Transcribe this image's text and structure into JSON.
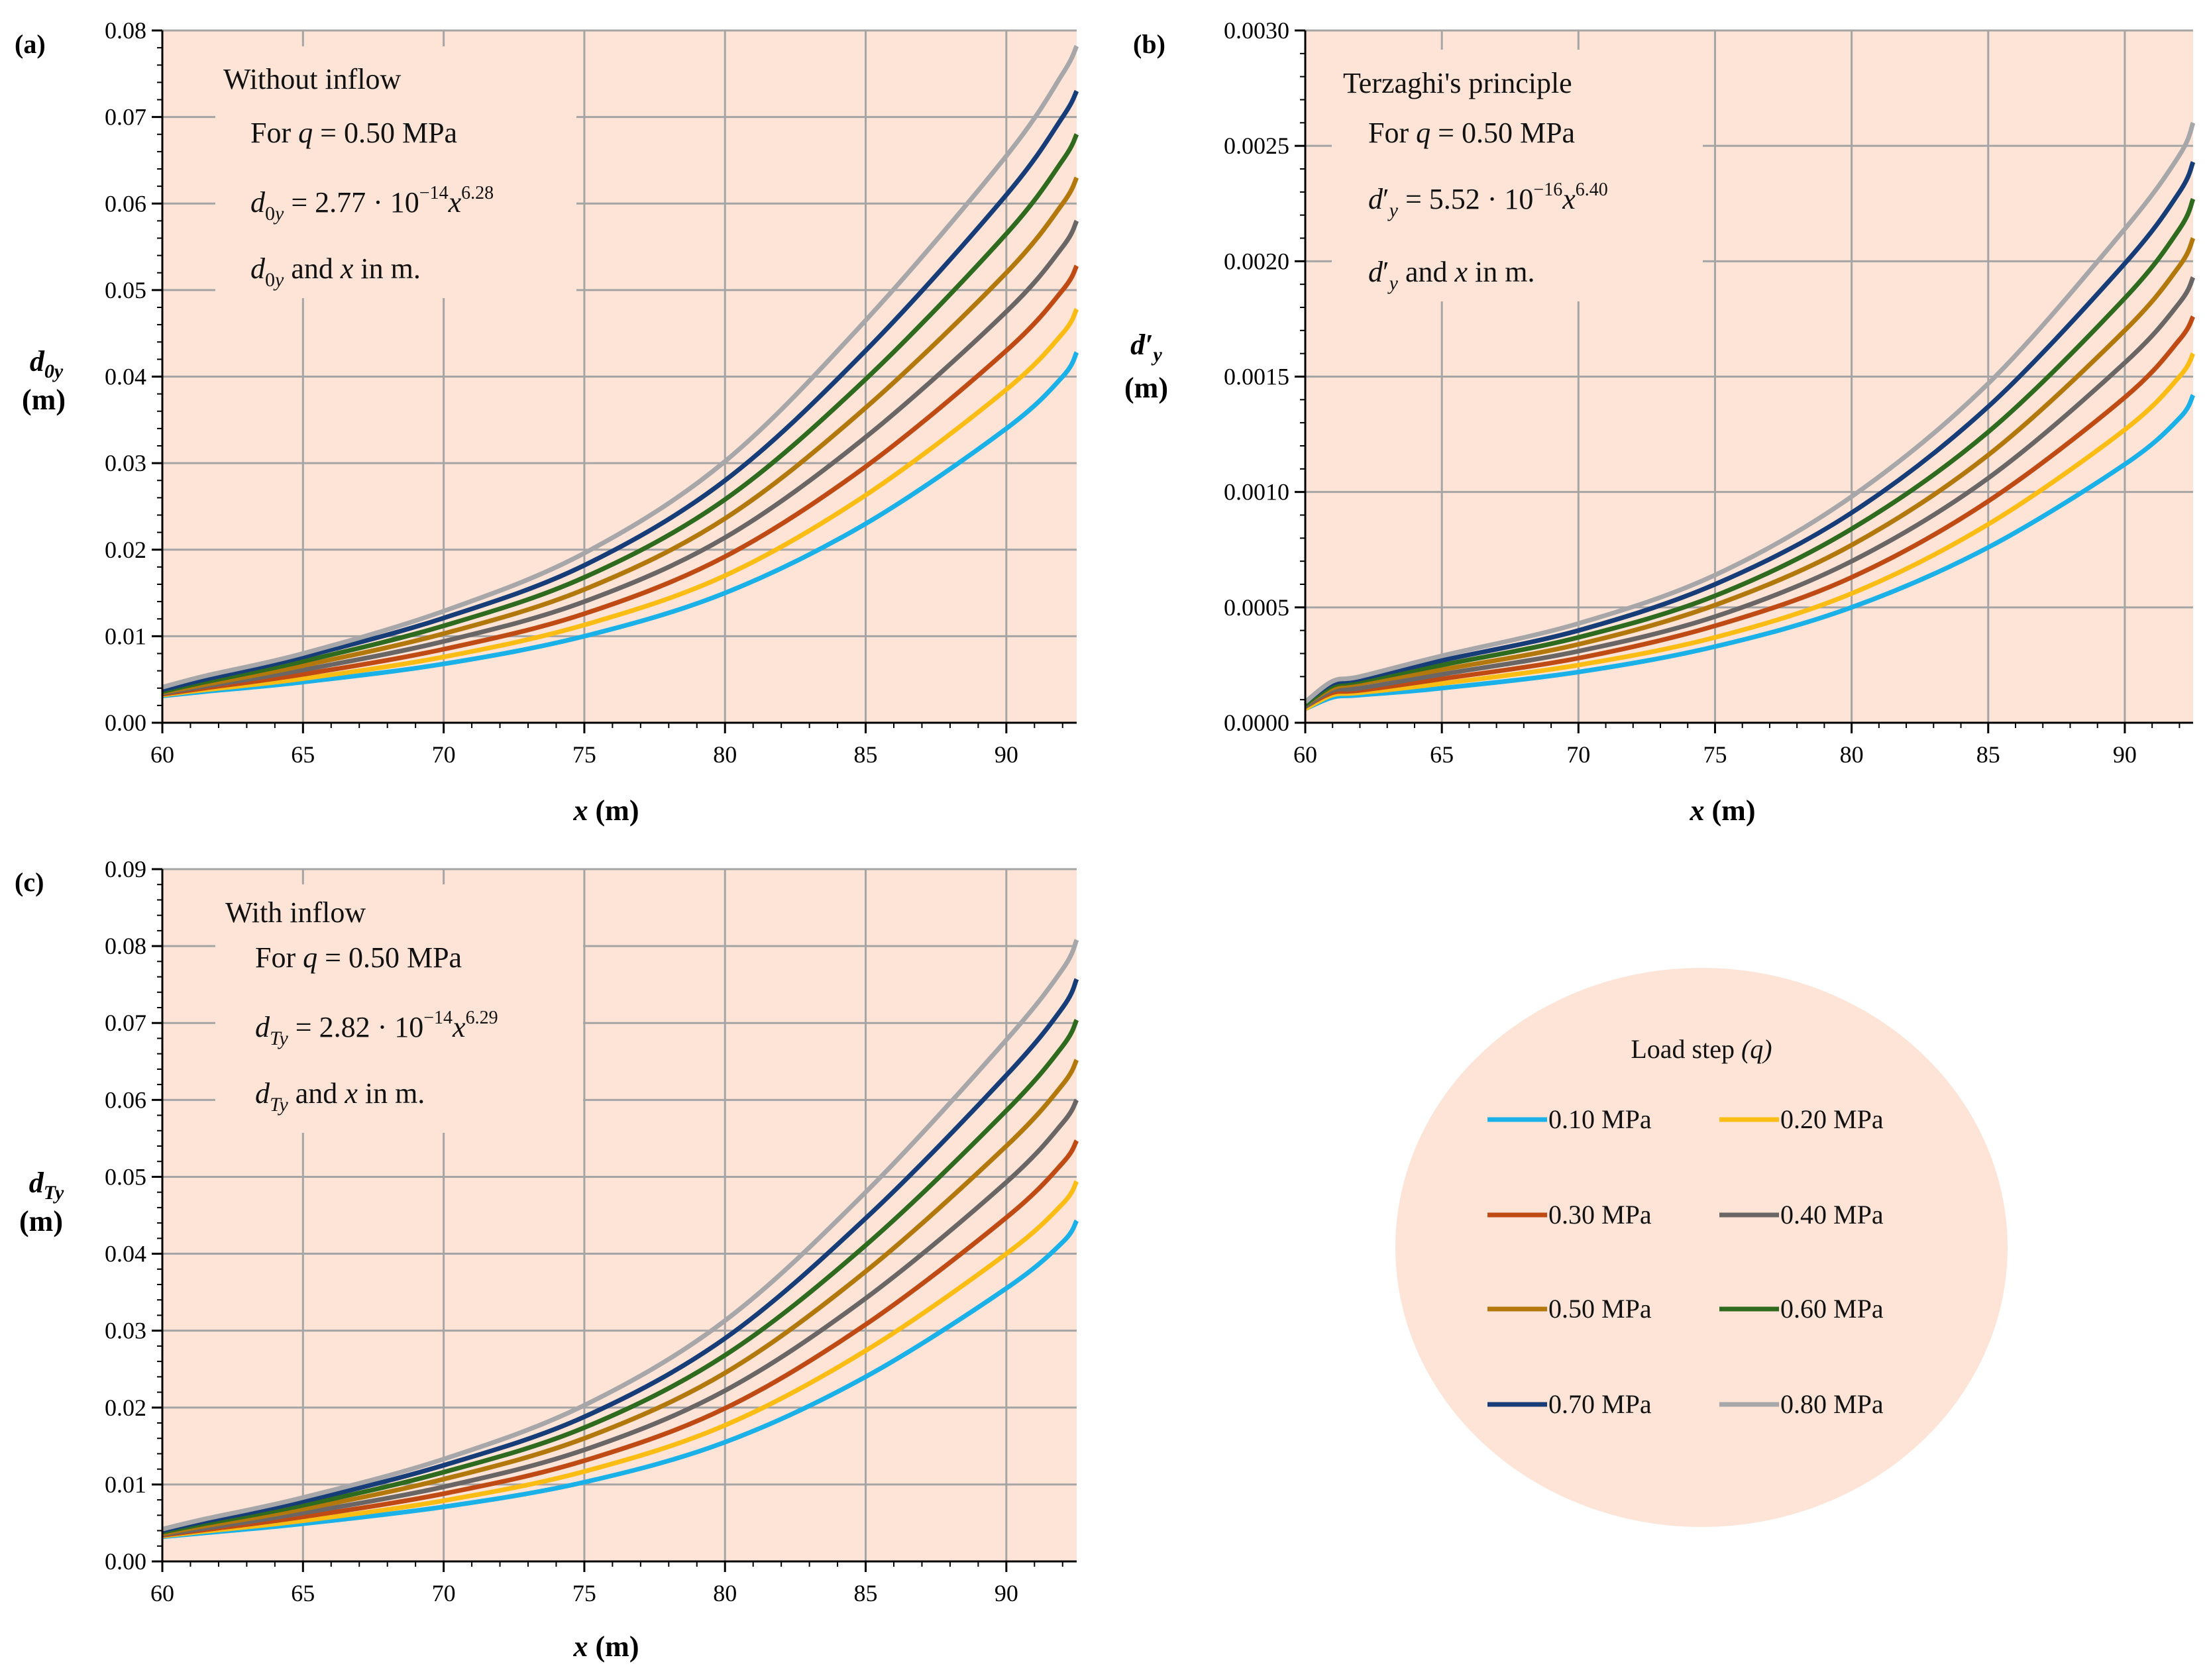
{
  "chart_data": [
    {
      "panel": "(a)",
      "type": "line",
      "xlabel": "x (m)",
      "xlabel_var": "x",
      "xlabel_unit": "(m)",
      "ylabel_var": "d",
      "ylabel_sub": "0y",
      "ylabel_unit": "(m)",
      "xlim": [
        60,
        92.5
      ],
      "ylim": [
        0,
        0.08
      ],
      "xticks": [
        60,
        65,
        70,
        75,
        80,
        85,
        90
      ],
      "yticks": [
        "0.00",
        "0.01",
        "0.02",
        "0.03",
        "0.04",
        "0.05",
        "0.06",
        "0.07",
        "0.08"
      ],
      "yticks_values": [
        0,
        0.01,
        0.02,
        0.03,
        0.04,
        0.05,
        0.06,
        0.07,
        0.08
      ],
      "grid": true,
      "annotation": {
        "title": "Without inflow",
        "line1": "For q = 0.50 MPa",
        "line2": "d0y = 2.77 · 10^-14 x^6.28",
        "line3": "d0y and x in m."
      },
      "x": [
        60,
        61.5,
        65,
        70,
        75,
        80,
        85,
        90,
        92,
        92.5
      ],
      "series": [
        {
          "name": "0.10 MPa",
          "values": [
            0.0031,
            0.0036,
            0.0047,
            0.0068,
            0.01,
            0.015,
            0.023,
            0.034,
            0.04,
            0.0428
          ]
        },
        {
          "name": "0.20 MPa",
          "values": [
            0.0032,
            0.0038,
            0.0051,
            0.0076,
            0.0113,
            0.017,
            0.0263,
            0.0385,
            0.045,
            0.0478
          ]
        },
        {
          "name": "0.30 MPa",
          "values": [
            0.0033,
            0.004,
            0.0056,
            0.0085,
            0.0126,
            0.0192,
            0.0296,
            0.043,
            0.05,
            0.0528
          ]
        },
        {
          "name": "0.40 MPa",
          "values": [
            0.0034,
            0.0042,
            0.0061,
            0.0094,
            0.014,
            0.0214,
            0.033,
            0.0475,
            0.055,
            0.058
          ]
        },
        {
          "name": "0.50 MPa",
          "values": [
            0.0035,
            0.0044,
            0.0066,
            0.0103,
            0.0154,
            0.0236,
            0.0364,
            0.052,
            0.06,
            0.063
          ]
        },
        {
          "name": "0.60 MPa",
          "values": [
            0.0036,
            0.0047,
            0.0071,
            0.0112,
            0.0168,
            0.0258,
            0.0397,
            0.0565,
            0.065,
            0.068
          ]
        },
        {
          "name": "0.70 MPa",
          "values": [
            0.0038,
            0.005,
            0.0076,
            0.0121,
            0.0182,
            0.028,
            0.043,
            0.061,
            0.07,
            0.073
          ]
        },
        {
          "name": "0.80 MPa",
          "values": [
            0.0041,
            0.0054,
            0.008,
            0.0129,
            0.0196,
            0.0302,
            0.0465,
            0.0655,
            0.075,
            0.0782
          ]
        }
      ]
    },
    {
      "panel": "(b)",
      "type": "line",
      "xlabel": "x (m)",
      "xlabel_var": "x",
      "xlabel_unit": "(m)",
      "ylabel_var": "d′",
      "ylabel_sub": "y",
      "ylabel_unit": "(m)",
      "xlim": [
        60,
        92.5
      ],
      "ylim": [
        0,
        0.003
      ],
      "xticks": [
        60,
        65,
        70,
        75,
        80,
        85,
        90
      ],
      "yticks": [
        "0.0000",
        "0.0005",
        "0.0010",
        "0.0015",
        "0.0020",
        "0.0025",
        "0.0030"
      ],
      "yticks_values": [
        0,
        0.0005,
        0.001,
        0.0015,
        0.002,
        0.0025,
        0.003
      ],
      "grid": true,
      "annotation": {
        "title": "Terzaghi's principle",
        "line1": "For q = 0.50 MPa",
        "line2": "d′y = 5.52 · 10^-16 x^6.40",
        "line3": "d′y and x in m."
      },
      "x": [
        60,
        61,
        62,
        65,
        70,
        75,
        80,
        85,
        90,
        92,
        92.5
      ],
      "series": [
        {
          "name": "0.10 MPa",
          "values": [
            6e-05,
            0.00011,
            0.00012,
            0.00015,
            0.00022,
            0.00033,
            0.0005,
            0.00076,
            0.00112,
            0.00132,
            0.00142
          ]
        },
        {
          "name": "0.20 MPa",
          "values": [
            6e-05,
            0.00012,
            0.00013,
            0.00017,
            0.00025,
            0.00037,
            0.00056,
            0.00086,
            0.00127,
            0.0015,
            0.0016
          ]
        },
        {
          "name": "0.30 MPa",
          "values": [
            7e-05,
            0.00013,
            0.00014,
            0.00019,
            0.00028,
            0.00042,
            0.00063,
            0.00096,
            0.00141,
            0.00166,
            0.00176
          ]
        },
        {
          "name": "0.40 MPa",
          "values": [
            7e-05,
            0.00014,
            0.00015,
            0.00021,
            0.00031,
            0.00046,
            0.0007,
            0.00106,
            0.00156,
            0.00182,
            0.00193
          ]
        },
        {
          "name": "0.50 MPa",
          "values": [
            8e-05,
            0.00015,
            0.00017,
            0.00023,
            0.00034,
            0.00051,
            0.00077,
            0.00116,
            0.0017,
            0.00198,
            0.0021
          ]
        },
        {
          "name": "0.60 MPa",
          "values": [
            8e-05,
            0.00016,
            0.00018,
            0.00025,
            0.00037,
            0.00055,
            0.00084,
            0.00126,
            0.00184,
            0.00214,
            0.00227
          ]
        },
        {
          "name": "0.70 MPa",
          "values": [
            9e-05,
            0.00017,
            0.00019,
            0.00027,
            0.0004,
            0.0006,
            0.00091,
            0.00137,
            0.00199,
            0.0023,
            0.00243
          ]
        },
        {
          "name": "0.80 MPa",
          "values": [
            9e-05,
            0.00018,
            0.0002,
            0.00029,
            0.00043,
            0.00064,
            0.00098,
            0.00147,
            0.00214,
            0.00246,
            0.0026
          ]
        }
      ]
    },
    {
      "panel": "(c)",
      "type": "line",
      "xlabel": "x (m)",
      "xlabel_var": "x",
      "xlabel_unit": "(m)",
      "ylabel_var": "d",
      "ylabel_sub": "Ty",
      "ylabel_unit": "(m)",
      "xlim": [
        60,
        92.5
      ],
      "ylim": [
        0,
        0.09
      ],
      "xticks": [
        60,
        65,
        70,
        75,
        80,
        85,
        90
      ],
      "yticks": [
        "0.00",
        "0.01",
        "0.02",
        "0.03",
        "0.04",
        "0.05",
        "0.06",
        "0.07",
        "0.08",
        "0.09"
      ],
      "yticks_values": [
        0,
        0.01,
        0.02,
        0.03,
        0.04,
        0.05,
        0.06,
        0.07,
        0.08,
        0.09
      ],
      "grid": true,
      "annotation": {
        "title": "With inflow",
        "line1": "For q = 0.50 MPa",
        "line2": "dTy = 2.82 · 10^-14 x^6.29",
        "line3": "dTy and x in m."
      },
      "x": [
        60,
        61.5,
        65,
        70,
        75,
        80,
        85,
        90,
        92,
        92.5
      ],
      "series": [
        {
          "name": "0.10 MPa",
          "values": [
            0.0032,
            0.0037,
            0.0049,
            0.0071,
            0.0103,
            0.0155,
            0.024,
            0.0355,
            0.0415,
            0.0443
          ]
        },
        {
          "name": "0.20 MPa",
          "values": [
            0.0033,
            0.0039,
            0.0053,
            0.0079,
            0.0117,
            0.0177,
            0.0274,
            0.04,
            0.0465,
            0.0494
          ]
        },
        {
          "name": "0.30 MPa",
          "values": [
            0.0034,
            0.0041,
            0.0058,
            0.0088,
            0.0131,
            0.0199,
            0.0308,
            0.0447,
            0.0518,
            0.0547
          ]
        },
        {
          "name": "0.40 MPa",
          "values": [
            0.0035,
            0.0043,
            0.0063,
            0.0097,
            0.0145,
            0.0222,
            0.0342,
            0.0493,
            0.057,
            0.06
          ]
        },
        {
          "name": "0.50 MPa",
          "values": [
            0.0036,
            0.0046,
            0.0068,
            0.0107,
            0.016,
            0.0245,
            0.0377,
            0.054,
            0.062,
            0.0652
          ]
        },
        {
          "name": "0.60 MPa",
          "values": [
            0.0038,
            0.0049,
            0.0073,
            0.0116,
            0.0174,
            0.0268,
            0.0411,
            0.0586,
            0.067,
            0.0704
          ]
        },
        {
          "name": "0.70 MPa",
          "values": [
            0.004,
            0.0052,
            0.0078,
            0.0125,
            0.0188,
            0.029,
            0.0446,
            0.0632,
            0.072,
            0.0757
          ]
        },
        {
          "name": "0.80 MPa",
          "values": [
            0.0042,
            0.0055,
            0.0083,
            0.0133,
            0.0203,
            0.0313,
            0.048,
            0.0678,
            0.077,
            0.0808
          ]
        }
      ]
    }
  ],
  "legend": {
    "title": "Load step",
    "title_var": "(q)",
    "entries": [
      "0.10 MPa",
      "0.20 MPa",
      "0.30 MPa",
      "0.40 MPa",
      "0.50 MPa",
      "0.60 MPa",
      "0.70 MPa",
      "0.80 MPa"
    ]
  },
  "colors": {
    "plot_bg": "#fde4d7",
    "grid": "#a5a5a5",
    "series": [
      "#1ab0e8",
      "#fbbd14",
      "#c04a13",
      "#6a6666",
      "#b3780b",
      "#2e6b1f",
      "#173d78",
      "#a7a7aa"
    ]
  }
}
